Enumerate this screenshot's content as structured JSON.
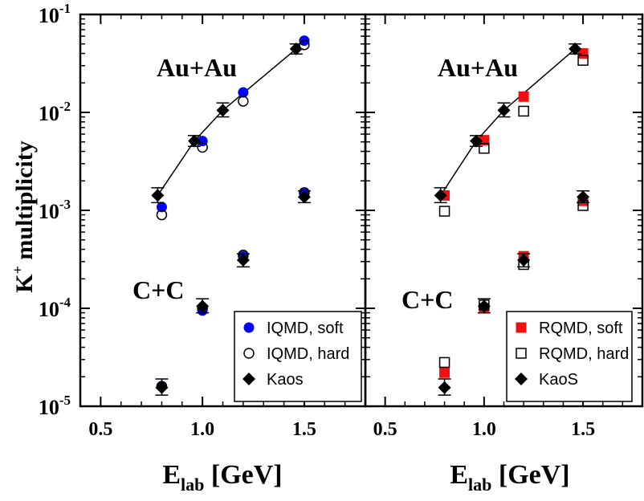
{
  "chart_data": {
    "type": "scatter",
    "yscale": "log",
    "y_axis_label": "K⁺ multiplicity",
    "y_tick_labels": [
      "10-5",
      "10-4",
      "10-3",
      "10-2",
      "10-1"
    ],
    "ylim": [
      1e-05,
      0.1
    ],
    "panels": [
      {
        "id": "left",
        "xlabel": "Elab [GeV]",
        "xlim": [
          0.4,
          1.8
        ],
        "x_tick_labels": [
          "0.5",
          "1.0",
          "1.5"
        ],
        "annotations": [
          "Au+Au",
          "C+C"
        ],
        "legend_position": "bottom-right",
        "series": [
          {
            "name": "IQMD, soft",
            "marker": "filled-circle",
            "color": "#0000ff",
            "points": [
              {
                "x": 0.8,
                "y": 0.00108,
                "system": "Au+Au"
              },
              {
                "x": 1.0,
                "y": 0.0051,
                "system": "Au+Au"
              },
              {
                "x": 1.2,
                "y": 0.016,
                "system": "Au+Au"
              },
              {
                "x": 1.5,
                "y": 0.054,
                "system": "Au+Au"
              },
              {
                "x": 0.8,
                "y": 1.6e-05,
                "system": "C+C"
              },
              {
                "x": 1.0,
                "y": 9.5e-05,
                "system": "C+C"
              },
              {
                "x": 1.2,
                "y": 0.00034,
                "system": "C+C"
              },
              {
                "x": 1.5,
                "y": 0.00148,
                "system": "C+C"
              }
            ]
          },
          {
            "name": "IQMD, hard",
            "marker": "open-circle",
            "color": "#000000",
            "points": [
              {
                "x": 0.8,
                "y": 0.0009,
                "system": "Au+Au"
              },
              {
                "x": 1.0,
                "y": 0.0044,
                "system": "Au+Au"
              },
              {
                "x": 1.2,
                "y": 0.013,
                "system": "Au+Au"
              },
              {
                "x": 1.5,
                "y": 0.049,
                "system": "Au+Au"
              },
              {
                "x": 0.8,
                "y": 1.6e-05,
                "system": "C+C"
              },
              {
                "x": 1.0,
                "y": 0.0001,
                "system": "C+C"
              },
              {
                "x": 1.2,
                "y": 0.00035,
                "system": "C+C"
              },
              {
                "x": 1.5,
                "y": 0.00152,
                "system": "C+C"
              }
            ]
          },
          {
            "name": "Kaos",
            "marker": "diamond",
            "color": "#000000",
            "line_through": "Au+Au",
            "points": [
              {
                "x": 0.78,
                "y": 0.00142,
                "err": [
                  0.0012,
                  0.0017
                ],
                "system": "Au+Au"
              },
              {
                "x": 0.96,
                "y": 0.0051,
                "err": [
                  0.0045,
                  0.0058
                ],
                "system": "Au+Au"
              },
              {
                "x": 1.1,
                "y": 0.0105,
                "err": [
                  0.009,
                  0.0125
                ],
                "system": "Au+Au"
              },
              {
                "x": 1.46,
                "y": 0.0445,
                "err": [
                  0.0395,
                  0.05
                ],
                "system": "Au+Au"
              },
              {
                "x": 0.8,
                "y": 1.55e-05,
                "err": [
                  1.3e-05,
                  1.9e-05
                ],
                "system": "C+C"
              },
              {
                "x": 1.0,
                "y": 0.000105,
                "err": [
                  9e-05,
                  0.000125
                ],
                "system": "C+C"
              },
              {
                "x": 1.2,
                "y": 0.00031,
                "err": [
                  0.000265,
                  0.00036
                ],
                "system": "C+C"
              },
              {
                "x": 1.5,
                "y": 0.00137,
                "err": [
                  0.0012,
                  0.00158
                ],
                "system": "C+C"
              }
            ]
          }
        ]
      },
      {
        "id": "right",
        "xlabel": "Elab [GeV]",
        "xlim": [
          0.4,
          1.8
        ],
        "x_tick_labels": [
          "0.5",
          "1.0",
          "1.5"
        ],
        "annotations": [
          "Au+Au",
          "C+C"
        ],
        "legend_position": "bottom-right",
        "series": [
          {
            "name": "RQMD, soft",
            "marker": "filled-square",
            "color": "#ee1111",
            "points": [
              {
                "x": 0.8,
                "y": 0.00142,
                "system": "Au+Au"
              },
              {
                "x": 1.0,
                "y": 0.0052,
                "system": "Au+Au"
              },
              {
                "x": 1.2,
                "y": 0.0145,
                "system": "Au+Au"
              },
              {
                "x": 1.5,
                "y": 0.04,
                "system": "Au+Au"
              },
              {
                "x": 0.8,
                "y": 2.2e-05,
                "system": "C+C"
              },
              {
                "x": 1.0,
                "y": 0.0001,
                "system": "C+C"
              },
              {
                "x": 1.2,
                "y": 0.00034,
                "system": "C+C"
              },
              {
                "x": 1.5,
                "y": 0.00125,
                "system": "C+C"
              }
            ]
          },
          {
            "name": "RQMD, hard",
            "marker": "open-square",
            "color": "#000000",
            "points": [
              {
                "x": 0.8,
                "y": 0.00098,
                "system": "Au+Au"
              },
              {
                "x": 1.0,
                "y": 0.0043,
                "system": "Au+Au"
              },
              {
                "x": 1.2,
                "y": 0.0103,
                "system": "Au+Au"
              },
              {
                "x": 1.5,
                "y": 0.034,
                "system": "Au+Au"
              },
              {
                "x": 0.8,
                "y": 2.8e-05,
                "system": "C+C"
              },
              {
                "x": 1.0,
                "y": 0.000108,
                "system": "C+C"
              },
              {
                "x": 1.2,
                "y": 0.00028,
                "system": "C+C"
              },
              {
                "x": 1.5,
                "y": 0.00112,
                "system": "C+C"
              }
            ]
          },
          {
            "name": "KaoS",
            "marker": "diamond",
            "color": "#000000",
            "line_through": "Au+Au",
            "points": [
              {
                "x": 0.78,
                "y": 0.00142,
                "err": [
                  0.0012,
                  0.0017
                ],
                "system": "Au+Au"
              },
              {
                "x": 0.96,
                "y": 0.0051,
                "err": [
                  0.0045,
                  0.0058
                ],
                "system": "Au+Au"
              },
              {
                "x": 1.1,
                "y": 0.0105,
                "err": [
                  0.009,
                  0.0125
                ],
                "system": "Au+Au"
              },
              {
                "x": 1.46,
                "y": 0.0445,
                "err": [
                  0.0395,
                  0.05
                ],
                "system": "Au+Au"
              },
              {
                "x": 0.8,
                "y": 1.55e-05,
                "err": [
                  1.3e-05,
                  1.9e-05
                ],
                "system": "C+C"
              },
              {
                "x": 1.0,
                "y": 0.000105,
                "err": [
                  9e-05,
                  0.000125
                ],
                "system": "C+C"
              },
              {
                "x": 1.2,
                "y": 0.00031,
                "err": [
                  0.000265,
                  0.00036
                ],
                "system": "C+C"
              },
              {
                "x": 1.5,
                "y": 0.00137,
                "err": [
                  0.0012,
                  0.00158
                ],
                "system": "C+C"
              }
            ]
          }
        ]
      }
    ]
  }
}
